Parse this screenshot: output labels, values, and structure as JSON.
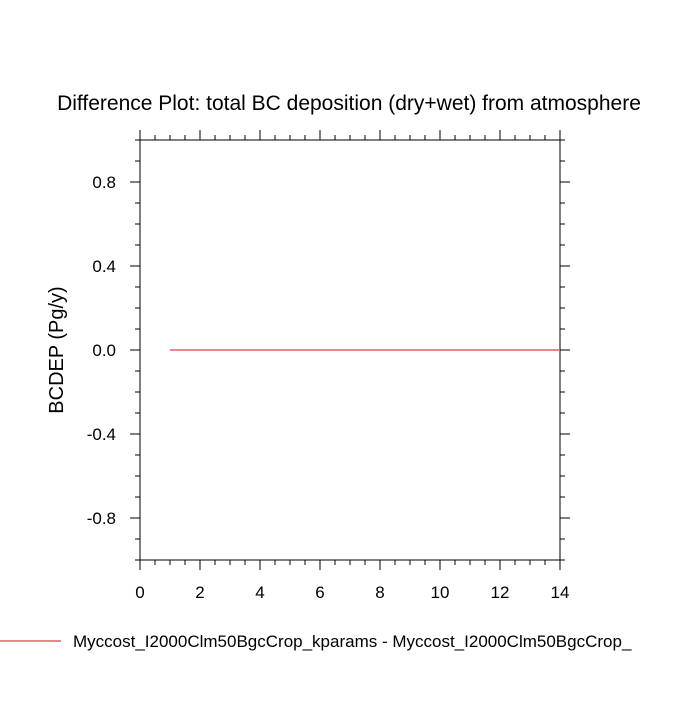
{
  "chart_data": {
    "type": "line",
    "title": "Difference Plot: total BC deposition (dry+wet) from atmosphere",
    "xlabel": "",
    "ylabel": "BCDEP  (Pg/y)",
    "xlim": [
      0,
      14
    ],
    "ylim": [
      -1.0,
      1.0
    ],
    "x_ticks": [
      0,
      2,
      4,
      6,
      8,
      10,
      12,
      14
    ],
    "x_tick_labels": [
      "0",
      "2",
      "4",
      "6",
      "8",
      "10",
      "12",
      "14"
    ],
    "y_ticks": [
      -0.8,
      -0.4,
      0.0,
      0.4,
      0.8
    ],
    "y_tick_labels": [
      "-0.8",
      "-0.4",
      "0.0",
      "0.4",
      "0.8"
    ],
    "grid": false,
    "legend_position": "bottom",
    "series": [
      {
        "name": "Myccost_I2000Clm50BgcCrop_kparams - Myccost_I2000Clm50BgcCrop_",
        "color": "#e06060",
        "x": [
          1,
          2,
          3,
          4,
          5,
          6,
          7,
          8,
          9,
          10,
          11,
          12,
          13,
          14
        ],
        "y": [
          0,
          0,
          0,
          0,
          0,
          0,
          0,
          0,
          0,
          0,
          0,
          0,
          0,
          0
        ]
      }
    ]
  }
}
